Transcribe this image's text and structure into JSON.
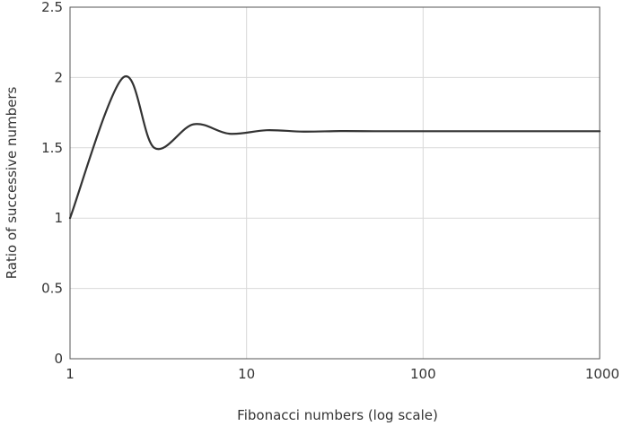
{
  "chart_data": {
    "type": "line",
    "title": "",
    "xlabel": "Fibonacci numbers (log scale)",
    "ylabel": "Ratio of successive numbers",
    "x_scale": "log",
    "xlim": [
      1,
      1000
    ],
    "ylim": [
      0,
      2.5
    ],
    "grid": true,
    "legend": "none",
    "x_ticks": [
      1,
      10,
      100,
      1000
    ],
    "x_tick_labels": [
      "1",
      "10",
      "100",
      "1000"
    ],
    "y_ticks": [
      0,
      0.5,
      1,
      1.5,
      2,
      2.5
    ],
    "y_tick_labels": [
      "0",
      "0.5",
      "1",
      "1.5",
      "2",
      "2.5"
    ],
    "line_color": "#333333",
    "grid_color": "#d9d9d9",
    "series": [
      {
        "x": [
          1,
          2,
          3,
          5,
          8,
          13,
          21,
          34,
          55,
          89,
          144,
          233,
          377,
          610,
          1000
        ],
        "y": [
          1,
          2,
          1.5,
          1.667,
          1.6,
          1.625,
          1.615,
          1.619,
          1.618,
          1.618,
          1.618,
          1.618,
          1.618,
          1.618,
          1.618
        ]
      }
    ]
  }
}
